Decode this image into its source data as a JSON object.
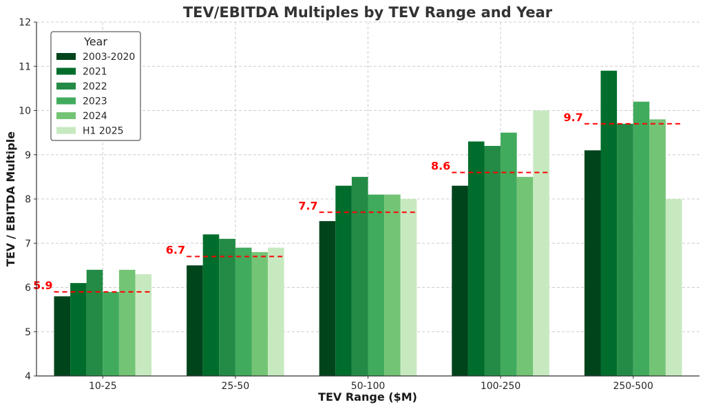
{
  "chart_data": {
    "type": "bar",
    "title": "TEV/EBITDA Multiples by TEV Range and Year",
    "xlabel": "TEV Range ($M)",
    "ylabel": "TEV / EBITDA Multiple",
    "ylim": [
      4,
      12
    ],
    "yticks": [
      4,
      5,
      6,
      7,
      8,
      9,
      10,
      11,
      12
    ],
    "grid": true,
    "legend_title": "Year",
    "legend_position": "top-left",
    "categories": [
      "10-25",
      "25-50",
      "50-100",
      "100-250",
      "250-500"
    ],
    "series": [
      {
        "name": "2003-2020",
        "color": "#00441b",
        "values": [
          5.8,
          6.5,
          7.5,
          8.3,
          9.1
        ]
      },
      {
        "name": "2021",
        "color": "#006d2c",
        "values": [
          6.1,
          7.2,
          8.3,
          9.3,
          10.9
        ]
      },
      {
        "name": "2022",
        "color": "#238b45",
        "values": [
          6.4,
          7.1,
          8.5,
          9.2,
          9.7
        ]
      },
      {
        "name": "2023",
        "color": "#41ab5d",
        "values": [
          5.9,
          6.9,
          8.1,
          9.5,
          10.2
        ]
      },
      {
        "name": "2024",
        "color": "#74c476",
        "values": [
          6.4,
          6.8,
          8.1,
          8.5,
          9.8
        ]
      },
      {
        "name": "H1 2025",
        "color": "#c7e9c0",
        "values": [
          6.3,
          6.9,
          8.0,
          10.0,
          8.0
        ]
      }
    ],
    "averages": {
      "color": "#ff0000",
      "values": [
        5.9,
        6.7,
        7.7,
        8.6,
        9.7
      ],
      "labels": [
        "5.9",
        "6.7",
        "7.7",
        "8.6",
        "9.7"
      ]
    }
  }
}
